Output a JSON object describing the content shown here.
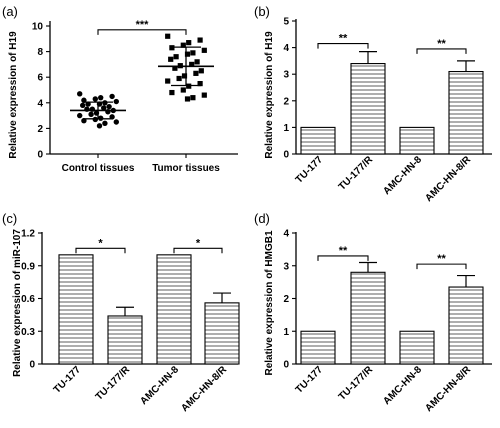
{
  "chart_data": [
    {
      "panel": "(a)",
      "type": "scatter",
      "ylabel": "Relative expression of H19",
      "ylim": [
        0,
        10
      ],
      "yticks": [
        0,
        2,
        4,
        6,
        8,
        10
      ],
      "categories": [
        "Control tissues",
        "Tumor  tissues"
      ],
      "points": [
        [
          4.7,
          4.5,
          4.4,
          4.3,
          4.2,
          4.1,
          4.0,
          3.9,
          3.9,
          3.8,
          3.7,
          3.6,
          3.5,
          3.5,
          3.4,
          3.3,
          3.2,
          3.1,
          3.0,
          2.9,
          2.8,
          2.7,
          2.6,
          2.5,
          2.4,
          2.2
        ],
        [
          9.2,
          8.9,
          8.7,
          8.5,
          8.3,
          8.1,
          7.9,
          7.8,
          7.6,
          7.4,
          7.2,
          7.0,
          6.9,
          6.7,
          6.5,
          6.3,
          6.1,
          5.9,
          5.7,
          5.5,
          5.3,
          5.0,
          4.8,
          4.6,
          4.4,
          4.3
        ]
      ],
      "mean": [
        3.4,
        6.85
      ],
      "sd": [
        0.65,
        1.5
      ],
      "significance": [
        {
          "from": 0,
          "to": 1,
          "label": "***",
          "y": 9.7
        }
      ]
    },
    {
      "panel": "(b)",
      "type": "bar",
      "ylabel": "Relative expression of H19",
      "ylim": [
        0,
        5
      ],
      "yticks": [
        0,
        1,
        2,
        3,
        4,
        5
      ],
      "categories": [
        "TU-177",
        "TU-177/R",
        "AMC-HN-8",
        "AMC-HN-8/R"
      ],
      "values": [
        1.0,
        3.4,
        1.0,
        3.1
      ],
      "errors": [
        0,
        0.45,
        0,
        0.4
      ],
      "significance": [
        {
          "from": 0,
          "to": 1,
          "label": "**",
          "y": 4.15
        },
        {
          "from": 2,
          "to": 3,
          "label": "**",
          "y": 3.95
        }
      ]
    },
    {
      "panel": "(c)",
      "type": "bar",
      "ylabel": "Relative expression of miR-107",
      "ylim": [
        0,
        1.2
      ],
      "yticks": [
        0,
        0.3,
        0.6,
        0.9,
        1.2
      ],
      "yticklabels": [
        "0",
        "0.3",
        "0.6",
        "0.9",
        "1.2"
      ],
      "categories": [
        "TU-177",
        "TU-177/R",
        "AMC-HN-8",
        "AMC-HN-8/R"
      ],
      "values": [
        1.0,
        0.44,
        1.0,
        0.56
      ],
      "errors": [
        0,
        0.08,
        0,
        0.09
      ],
      "significance": [
        {
          "from": 0,
          "to": 1,
          "label": "*",
          "y": 1.06
        },
        {
          "from": 2,
          "to": 3,
          "label": "*",
          "y": 1.06
        }
      ]
    },
    {
      "panel": "(d)",
      "type": "bar",
      "ylabel": "Relative expression of HMGB1",
      "ylim": [
        0,
        4
      ],
      "yticks": [
        0,
        1,
        2,
        3,
        4
      ],
      "categories": [
        "TU-177",
        "TU-177/R",
        "AMC-HN-8",
        "AMC-HN-8/R"
      ],
      "values": [
        1.0,
        2.8,
        1.0,
        2.35
      ],
      "errors": [
        0,
        0.3,
        0,
        0.35
      ],
      "significance": [
        {
          "from": 0,
          "to": 1,
          "label": "**",
          "y": 3.3
        },
        {
          "from": 2,
          "to": 3,
          "label": "**",
          "y": 3.05
        }
      ]
    }
  ]
}
